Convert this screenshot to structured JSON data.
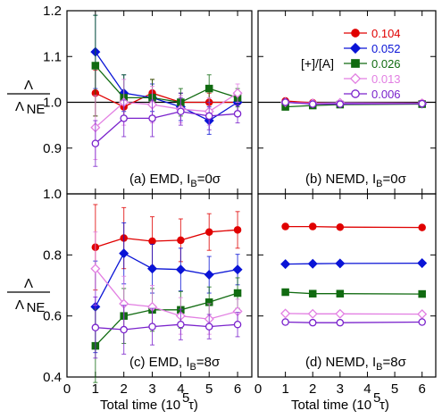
{
  "figure": {
    "ylabel_num": "Λ",
    "ylabel_den": "Λ",
    "ylabel_den_sub": "NE",
    "xlabel": "Total time (10",
    "xlabel_sup": "5",
    "xlabel_unit": " τ)",
    "legend_title": "[+]/[A]"
  },
  "series_styles": [
    {
      "name": "0.104",
      "color": "#e00000",
      "marker": "circle",
      "filled": true
    },
    {
      "name": "0.052",
      "color": "#0a14d6",
      "marker": "diamond",
      "filled": true
    },
    {
      "name": "0.026",
      "color": "#116b11",
      "marker": "square",
      "filled": true
    },
    {
      "name": "0.013",
      "color": "#e27fe2",
      "marker": "diamond",
      "filled": false
    },
    {
      "name": "0.006",
      "color": "#7a22cc",
      "marker": "circle",
      "filled": false
    }
  ],
  "chart_data": [
    {
      "type": "line",
      "panel": "a",
      "label": "(a) EMD, I",
      "label_sub": "B",
      "label_tail": "=0σ",
      "x": [
        1,
        2,
        3,
        4,
        5,
        6
      ],
      "xlim": [
        0,
        6.5
      ],
      "ylim": [
        0.8,
        1.2
      ],
      "yticks": [
        "",
        "0.9",
        "1.0",
        "1.1",
        "1.2"
      ],
      "ytick_values": [
        0.8,
        0.9,
        1.0,
        1.1,
        1.2
      ],
      "xticks": [],
      "reference_line": 1.0,
      "series": [
        {
          "name": "0.104",
          "values": [
            1.02,
            0.99,
            1.02,
            1.0,
            1.0,
            1.0
          ],
          "err": [
            0.05,
            0.03,
            0.03,
            0.02,
            0.02,
            0.02
          ]
        },
        {
          "name": "0.052",
          "values": [
            1.11,
            1.02,
            1.01,
            0.99,
            0.96,
            1.0
          ],
          "err": [
            0.08,
            0.04,
            0.03,
            0.03,
            0.03,
            0.02
          ]
        },
        {
          "name": "0.026",
          "values": [
            1.08,
            1.01,
            1.01,
            1.0,
            1.03,
            1.01
          ],
          "err": [
            0.11,
            0.05,
            0.04,
            0.03,
            0.03,
            0.02
          ]
        },
        {
          "name": "0.013",
          "values": [
            0.945,
            1.0,
            0.995,
            0.985,
            0.98,
            1.02
          ],
          "err": [
            0.07,
            0.05,
            0.04,
            0.03,
            0.03,
            0.02
          ]
        },
        {
          "name": "0.006",
          "values": [
            0.91,
            0.965,
            0.965,
            0.98,
            0.97,
            0.975
          ],
          "err": [
            0.05,
            0.04,
            0.04,
            0.03,
            0.03,
            0.02
          ]
        }
      ]
    },
    {
      "type": "line",
      "panel": "b",
      "label": "(b) NEMD, I",
      "label_sub": "B",
      "label_tail": "=0σ",
      "x": [
        1,
        2,
        3,
        6
      ],
      "xlim": [
        0,
        6.5
      ],
      "ylim": [
        0.8,
        1.2
      ],
      "yticks": [],
      "ytick_values": [
        0.8,
        0.9,
        1.0,
        1.1,
        1.2
      ],
      "xticks": [],
      "reference_line": 1.0,
      "legend": true,
      "series": [
        {
          "name": "0.104",
          "values": [
            1.003,
            0.999,
            0.998,
            0.998
          ]
        },
        {
          "name": "0.052",
          "values": [
            1.0,
            0.997,
            0.998,
            0.997
          ]
        },
        {
          "name": "0.026",
          "values": [
            0.99,
            0.993,
            0.995,
            0.996
          ]
        },
        {
          "name": "0.013",
          "values": [
            1.0,
            0.998,
            0.999,
            0.998
          ]
        },
        {
          "name": "0.006",
          "values": [
            1.0,
            0.996,
            0.996,
            0.997
          ]
        }
      ]
    },
    {
      "type": "line",
      "panel": "c",
      "label": "(c) EMD, I",
      "label_sub": "B",
      "label_tail": "=8σ",
      "x": [
        1,
        2,
        3,
        4,
        5,
        6
      ],
      "xlim": [
        0,
        6.5
      ],
      "ylim": [
        0.4,
        1.0
      ],
      "yticks": [
        "0.4",
        "0.6",
        "0.8",
        "1.0"
      ],
      "ytick_values": [
        0.4,
        0.6,
        0.8,
        1.0
      ],
      "xticks": [
        "0",
        "1",
        "2",
        "3",
        "4",
        "5",
        "6"
      ],
      "series": [
        {
          "name": "0.104",
          "values": [
            0.825,
            0.855,
            0.845,
            0.848,
            0.875,
            0.882
          ],
          "err": [
            0.14,
            0.1,
            0.08,
            0.07,
            0.06,
            0.06
          ]
        },
        {
          "name": "0.052",
          "values": [
            0.63,
            0.805,
            0.755,
            0.752,
            0.735,
            0.752
          ],
          "err": [
            0.15,
            0.1,
            0.08,
            0.07,
            0.06,
            0.05
          ]
        },
        {
          "name": "0.026",
          "values": [
            0.502,
            0.6,
            0.62,
            0.62,
            0.645,
            0.675
          ],
          "err": [
            0.12,
            0.09,
            0.07,
            0.06,
            0.05,
            0.05
          ]
        },
        {
          "name": "0.013",
          "values": [
            0.755,
            0.64,
            0.63,
            0.6,
            0.59,
            0.615
          ],
          "err": [
            0.12,
            0.09,
            0.07,
            0.06,
            0.05,
            0.04
          ]
        },
        {
          "name": "0.006",
          "values": [
            0.562,
            0.555,
            0.565,
            0.572,
            0.565,
            0.572
          ],
          "err": [
            0.1,
            0.08,
            0.06,
            0.05,
            0.04,
            0.04
          ]
        }
      ]
    },
    {
      "type": "line",
      "panel": "d",
      "label": "(d) NEMD, I",
      "label_sub": "B",
      "label_tail": "=8σ",
      "x": [
        1,
        2,
        3,
        6
      ],
      "xlim": [
        0,
        6.5
      ],
      "ylim": [
        0.4,
        1.0
      ],
      "yticks": [],
      "ytick_values": [
        0.4,
        0.6,
        0.8,
        1.0
      ],
      "xticks": [
        "0",
        "1",
        "2",
        "3",
        "4",
        "5",
        "6"
      ],
      "series": [
        {
          "name": "0.104",
          "values": [
            0.893,
            0.893,
            0.891,
            0.89
          ]
        },
        {
          "name": "0.052",
          "values": [
            0.77,
            0.771,
            0.772,
            0.773
          ]
        },
        {
          "name": "0.026",
          "values": [
            0.678,
            0.673,
            0.673,
            0.672
          ]
        },
        {
          "name": "0.013",
          "values": [
            0.608,
            0.607,
            0.607,
            0.606
          ]
        },
        {
          "name": "0.006",
          "values": [
            0.58,
            0.578,
            0.578,
            0.58
          ]
        }
      ]
    }
  ]
}
